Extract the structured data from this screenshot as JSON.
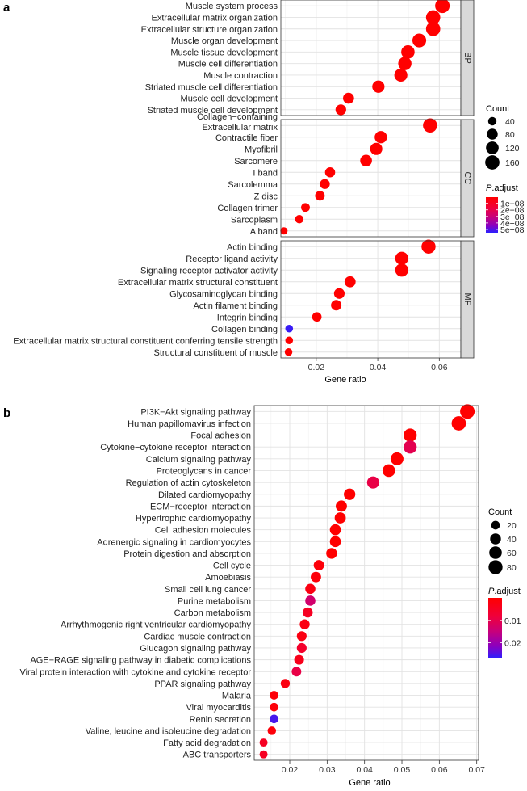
{
  "chart_data": [
    {
      "panel_label": "a",
      "type": "scatter",
      "xlabel": "Gene ratio",
      "xticks": [
        0.02,
        0.04,
        0.06
      ],
      "xlim": [
        0.0085,
        0.067
      ],
      "grid": true,
      "legend": {
        "count_title": "Count",
        "count_values": [
          40,
          80,
          120,
          160
        ],
        "padj_title_italic": "P",
        "padj_title_rest": ".adjust",
        "padj_ticks": [
          "1e−08",
          "2e−08",
          "3e−08",
          "4e−08",
          "5e−08"
        ],
        "padj_range": [
          5e-10,
          5.5e-08
        ],
        "padj_tick_values": [
          1e-08,
          2e-08,
          3e-08,
          4e-08,
          5e-08
        ]
      },
      "facets": [
        {
          "name": "BP",
          "terms": [
            {
              "term": "Muscle system process",
              "ratio": 0.061,
              "count": 168,
              "padj": 1e-30
            },
            {
              "term": "Extracellular matrix organization",
              "ratio": 0.058,
              "count": 160,
              "padj": 1e-30
            },
            {
              "term": "Extracellular structure organization",
              "ratio": 0.058,
              "count": 160,
              "padj": 1e-30
            },
            {
              "term": "Muscle organ development",
              "ratio": 0.0535,
              "count": 148,
              "padj": 1e-30
            },
            {
              "term": "Muscle tissue development",
              "ratio": 0.0498,
              "count": 138,
              "padj": 1e-30
            },
            {
              "term": "Muscle cell differentiation",
              "ratio": 0.0488,
              "count": 135,
              "padj": 1e-30
            },
            {
              "term": "Muscle contraction",
              "ratio": 0.0475,
              "count": 130,
              "padj": 1e-30
            },
            {
              "term": "Striated muscle cell differentiation",
              "ratio": 0.0402,
              "count": 110,
              "padj": 1e-30
            },
            {
              "term": "Muscle cell development",
              "ratio": 0.0305,
              "count": 84,
              "padj": 1e-30
            },
            {
              "term": "Striated muscle cell development",
              "ratio": 0.028,
              "count": 77,
              "padj": 1e-30
            }
          ]
        },
        {
          "name": "CC",
          "terms": [
            {
              "term": "Collagen−containing\nExtracellular matrix",
              "ratio": 0.057,
              "count": 157,
              "padj": 1e-30
            },
            {
              "term": "Contractile fiber",
              "ratio": 0.041,
              "count": 112,
              "padj": 1e-30
            },
            {
              "term": "Myofibril",
              "ratio": 0.0395,
              "count": 108,
              "padj": 1e-30
            },
            {
              "term": "Sarcomere",
              "ratio": 0.0362,
              "count": 100,
              "padj": 1e-30
            },
            {
              "term": "I band",
              "ratio": 0.0245,
              "count": 67,
              "padj": 1e-30
            },
            {
              "term": "Sarcolemma",
              "ratio": 0.0228,
              "count": 63,
              "padj": 1e-30
            },
            {
              "term": "Z disc",
              "ratio": 0.0212,
              "count": 58,
              "padj": 1e-30
            },
            {
              "term": "Collagen trimer",
              "ratio": 0.0165,
              "count": 45,
              "padj": 1e-30
            },
            {
              "term": "Sarcoplasm",
              "ratio": 0.0145,
              "count": 40,
              "padj": 1e-30
            },
            {
              "term": "A band",
              "ratio": 0.0095,
              "count": 26,
              "padj": 1e-30
            }
          ]
        },
        {
          "name": "MF",
          "terms": [
            {
              "term": "Actin binding",
              "ratio": 0.0565,
              "count": 155,
              "padj": 1e-30
            },
            {
              "term": "Receptor ligand activity",
              "ratio": 0.0478,
              "count": 131,
              "padj": 1e-30
            },
            {
              "term": "Signaling receptor activator activity",
              "ratio": 0.0478,
              "count": 131,
              "padj": 1e-30
            },
            {
              "term": "Extracellular matrix structural constituent",
              "ratio": 0.031,
              "count": 85,
              "padj": 1e-30
            },
            {
              "term": "Glycosaminoglycan binding",
              "ratio": 0.0275,
              "count": 76,
              "padj": 1e-30
            },
            {
              "term": "Actin filament binding",
              "ratio": 0.0265,
              "count": 73,
              "padj": 1e-30
            },
            {
              "term": "Integrin binding",
              "ratio": 0.0202,
              "count": 56,
              "padj": 1e-30
            },
            {
              "term": "Collagen binding",
              "ratio": 0.0112,
              "count": 31,
              "padj": 5.3e-08
            },
            {
              "term": "Extracellular matrix structural constituent conferring tensile strength",
              "ratio": 0.0112,
              "count": 31,
              "padj": 1e-30
            },
            {
              "term": "Structural constituent of muscle",
              "ratio": 0.011,
              "count": 30,
              "padj": 1e-30
            }
          ]
        }
      ]
    },
    {
      "panel_label": "b",
      "type": "scatter",
      "xlabel": "Gene ratio",
      "xticks": [
        0.02,
        0.03,
        0.04,
        0.05,
        0.06,
        0.07
      ],
      "xlim": [
        0.0105,
        0.0705
      ],
      "grid": true,
      "legend": {
        "count_title": "Count",
        "count_values": [
          20,
          40,
          60,
          80
        ],
        "padj_title_italic": "P",
        "padj_title_rest": ".adjust",
        "padj_ticks": [
          "0.01",
          "0.02"
        ],
        "padj_range": [
          0.0,
          0.027
        ],
        "padj_tick_values": [
          0.01,
          0.02
        ]
      },
      "terms": [
        {
          "term": "PI3K−Akt signaling pathway",
          "ratio": 0.0675,
          "count": 88,
          "padj": 0.0
        },
        {
          "term": "Human papillomavirus infection",
          "ratio": 0.0652,
          "count": 85,
          "padj": 0.0
        },
        {
          "term": "Focal adhesion",
          "ratio": 0.0522,
          "count": 68,
          "padj": 0.0
        },
        {
          "term": "Cytokine−cytokine receptor interaction",
          "ratio": 0.0522,
          "count": 68,
          "padj": 0.009
        },
        {
          "term": "Calcium signaling pathway",
          "ratio": 0.0487,
          "count": 63,
          "padj": 0.0
        },
        {
          "term": "Proteoglycans in cancer",
          "ratio": 0.0465,
          "count": 61,
          "padj": 0.0
        },
        {
          "term": "Regulation of actin cytoskeleton",
          "ratio": 0.0423,
          "count": 55,
          "padj": 0.008
        },
        {
          "term": "Dilated cardiomyopathy",
          "ratio": 0.036,
          "count": 47,
          "padj": 0.0
        },
        {
          "term": "ECM−receptor interaction",
          "ratio": 0.0338,
          "count": 44,
          "padj": 0.0
        },
        {
          "term": "Hypertrophic cardiomyopathy",
          "ratio": 0.0335,
          "count": 43,
          "padj": 0.0
        },
        {
          "term": "Cell adhesion molecules",
          "ratio": 0.0322,
          "count": 42,
          "padj": 0.0
        },
        {
          "term": "Adrenergic signaling in cardiomyocytes",
          "ratio": 0.0322,
          "count": 42,
          "padj": 0.0
        },
        {
          "term": "Protein digestion and absorption",
          "ratio": 0.0312,
          "count": 40,
          "padj": 0.0
        },
        {
          "term": "Cell cycle",
          "ratio": 0.0278,
          "count": 36,
          "padj": 0.001
        },
        {
          "term": "Amoebiasis",
          "ratio": 0.027,
          "count": 35,
          "padj": 0.001
        },
        {
          "term": "Small cell lung cancer",
          "ratio": 0.0255,
          "count": 33,
          "padj": 0.002
        },
        {
          "term": "Purine metabolism",
          "ratio": 0.0255,
          "count": 33,
          "padj": 0.012
        },
        {
          "term": "Carbon metabolism",
          "ratio": 0.0248,
          "count": 32,
          "padj": 0.004
        },
        {
          "term": "Arrhythmogenic right ventricular cardiomyopathy",
          "ratio": 0.024,
          "count": 31,
          "padj": 0.002
        },
        {
          "term": "Cardiac muscle contraction",
          "ratio": 0.0232,
          "count": 30,
          "padj": 0.002
        },
        {
          "term": "Glucagon signaling pathway",
          "ratio": 0.0232,
          "count": 30,
          "padj": 0.005
        },
        {
          "term": "AGE−RAGE signaling pathway in diabetic complications",
          "ratio": 0.0225,
          "count": 29,
          "padj": 0.003
        },
        {
          "term": "Viral protein interaction with cytokine and cytokine receptor",
          "ratio": 0.0218,
          "count": 28,
          "padj": 0.008
        },
        {
          "term": "PPAR signaling pathway",
          "ratio": 0.0188,
          "count": 24,
          "padj": 0.002
        },
        {
          "term": "Malaria",
          "ratio": 0.0158,
          "count": 20,
          "padj": 0.001
        },
        {
          "term": "Viral myocarditis",
          "ratio": 0.0158,
          "count": 20,
          "padj": 0.001
        },
        {
          "term": "Renin secretion",
          "ratio": 0.0158,
          "count": 20,
          "padj": 0.025
        },
        {
          "term": "Valine, leucine and isoleucine degradation",
          "ratio": 0.0152,
          "count": 19,
          "padj": 0.001
        },
        {
          "term": "Fatty acid degradation",
          "ratio": 0.013,
          "count": 16,
          "padj": 0.004
        },
        {
          "term": "ABC transporters",
          "ratio": 0.013,
          "count": 16,
          "padj": 0.004
        }
      ]
    }
  ]
}
